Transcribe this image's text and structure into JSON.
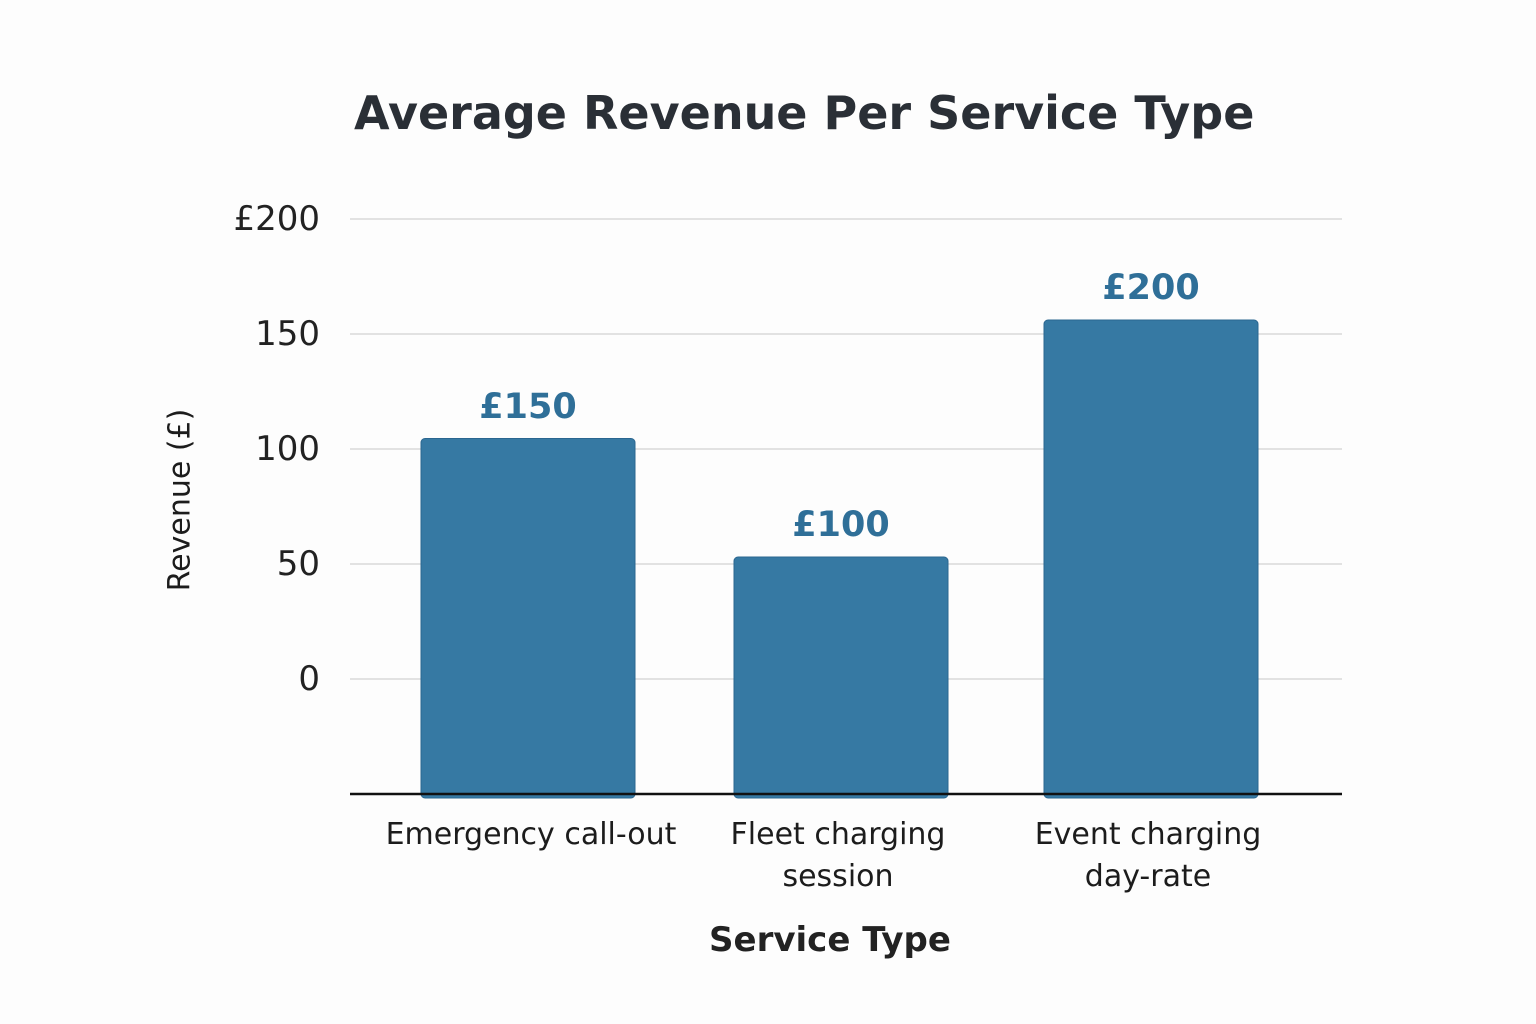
{
  "chart_data": {
    "type": "bar",
    "title": "Average Revenue Per Service Type",
    "xlabel": "Service Type",
    "ylabel": "Revenue (£)",
    "categories": [
      "Emergency call-out",
      "Fleet charging\nsession",
      "Event charging\nday-rate"
    ],
    "values": [
      150,
      100,
      200
    ],
    "data_labels": [
      "£150",
      "£100",
      "£200"
    ],
    "y_ticks": [
      "0",
      "50",
      "100",
      "150",
      "£200"
    ],
    "grid": true,
    "bar_color": "#3679a3"
  }
}
